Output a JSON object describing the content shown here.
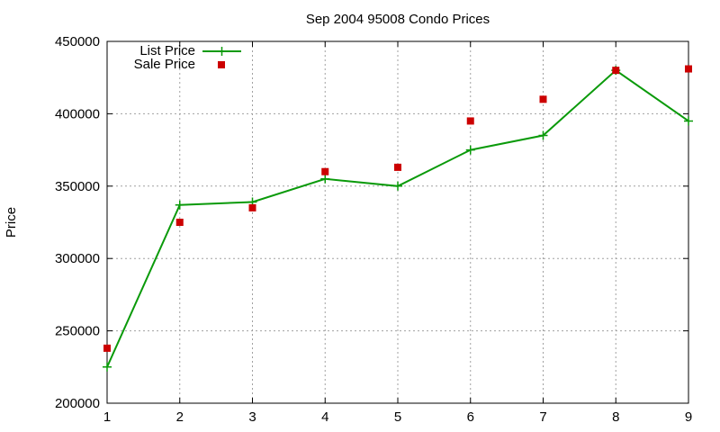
{
  "chart_data": {
    "type": "line",
    "title": "Sep 2004 95008 Condo Prices",
    "xlabel": "",
    "ylabel": "Price",
    "xlim": [
      1,
      9
    ],
    "ylim": [
      200000,
      450000
    ],
    "x_ticks": [
      1,
      2,
      3,
      4,
      5,
      6,
      7,
      8,
      9
    ],
    "y_ticks": [
      200000,
      250000,
      300000,
      350000,
      400000,
      450000
    ],
    "grid": true,
    "legend_position": "top-left",
    "series": [
      {
        "name": "List Price",
        "style": "line+cross",
        "color": "#0a9a0a",
        "x": [
          1,
          2,
          3,
          4,
          5,
          6,
          7,
          8,
          9
        ],
        "values": [
          225000,
          337000,
          339000,
          355000,
          350000,
          375000,
          385000,
          430000,
          395000
        ]
      },
      {
        "name": "Sale Price",
        "style": "square",
        "color": "#cc0000",
        "x": [
          1,
          2,
          3,
          4,
          5,
          6,
          7,
          8,
          9
        ],
        "values": [
          238000,
          325000,
          335000,
          360000,
          363000,
          395000,
          410000,
          430000,
          431000
        ]
      }
    ]
  }
}
